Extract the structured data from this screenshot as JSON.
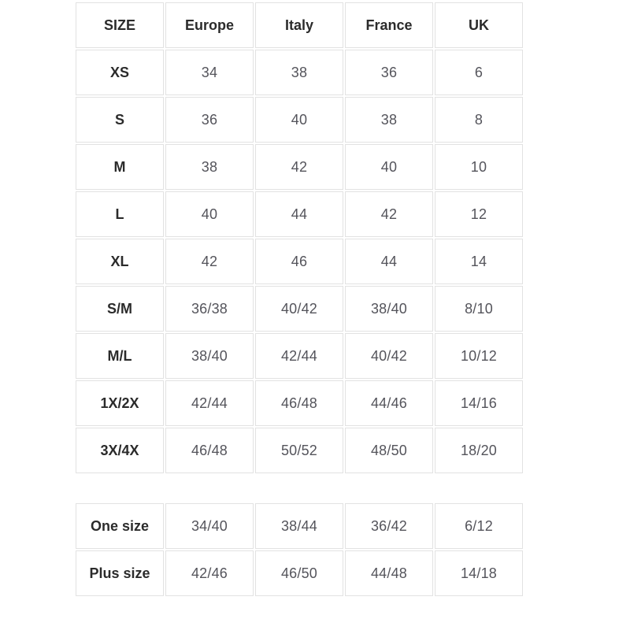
{
  "styles": {
    "border_color": "#e2e2e2",
    "header_text": "#2b2b2b",
    "cell_text": "#54545b",
    "bg": "#ffffff"
  },
  "chart_data": [
    {
      "type": "table",
      "columns": [
        "SIZE",
        "Europe",
        "Italy",
        "France",
        "UK"
      ],
      "rows": [
        [
          "XS",
          "34",
          "38",
          "36",
          "6"
        ],
        [
          "S",
          "36",
          "40",
          "38",
          "8"
        ],
        [
          "M",
          "38",
          "42",
          "40",
          "10"
        ],
        [
          "L",
          "40",
          "44",
          "42",
          "12"
        ],
        [
          "XL",
          "42",
          "46",
          "44",
          "14"
        ],
        [
          "S/M",
          "36/38",
          "40/42",
          "38/40",
          "8/10"
        ],
        [
          "M/L",
          "38/40",
          "42/44",
          "40/42",
          "10/12"
        ],
        [
          "1X/2X",
          "42/44",
          "46/48",
          "44/46",
          "14/16"
        ],
        [
          "3X/4X",
          "46/48",
          "50/52",
          "48/50",
          "18/20"
        ]
      ],
      "header_row_visible": true
    },
    {
      "type": "table",
      "columns": [],
      "rows": [
        [
          "One size",
          "34/40",
          "38/44",
          "36/42",
          "6/12"
        ],
        [
          "Plus size",
          "42/46",
          "46/50",
          "44/48",
          "14/18"
        ]
      ],
      "header_row_visible": false
    }
  ]
}
